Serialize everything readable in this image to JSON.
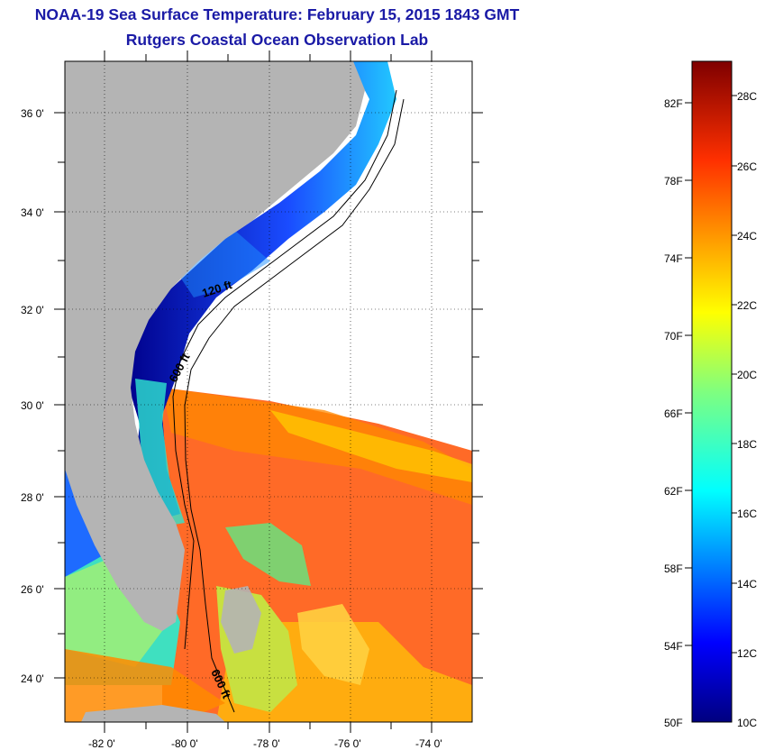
{
  "header": {
    "title": "NOAA-19 Sea Surface Temperature:  February 15, 2015 1843 GMT",
    "subtitle": "Rutgers Coastal Ocean Observation Lab"
  },
  "map": {
    "lat_range": [
      23,
      37
    ],
    "lon_range": [
      -83,
      -73
    ],
    "lat_ticks": [
      "36 0'",
      "34 0'",
      "32 0'",
      "30 0'",
      "28 0'",
      "26 0'",
      "24 0'"
    ],
    "lon_ticks": [
      "-82 0'",
      "-80 0'",
      "-78 0'",
      "-76 0'",
      "-74 0'"
    ],
    "contour_labels": [
      "120 ft",
      "600 ft",
      "600 ft"
    ],
    "land_color": "#b4b4b4",
    "background_color": "#ffffff"
  },
  "colorbar": {
    "range_celsius": [
      10,
      29
    ],
    "range_fahrenheit": [
      50,
      84
    ],
    "fahrenheit_labels": [
      "82F",
      "78F",
      "74F",
      "70F",
      "66F",
      "62F",
      "58F",
      "54F",
      "50F"
    ],
    "celsius_labels": [
      "28C",
      "26C",
      "24C",
      "22C",
      "20C",
      "18C",
      "16C",
      "14C",
      "12C",
      "10C"
    ],
    "colormap": "jet"
  }
}
